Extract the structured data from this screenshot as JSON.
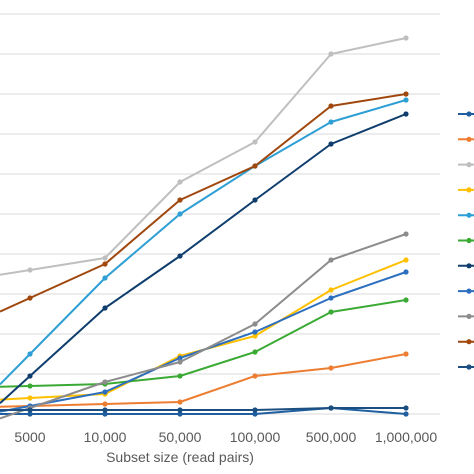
{
  "chart_data": {
    "type": "line",
    "title": "",
    "xlabel": "Subset size (read pairs)",
    "ylabel": "",
    "categories": [
      "5000",
      "10,000",
      "50,000",
      "100,000",
      "500,000",
      "1,000,000"
    ],
    "ylim": [
      0,
      100
    ],
    "grid": true,
    "legend": "right",
    "series": [
      {
        "color": "#1f5f9f",
        "values": [
          0,
          0,
          0,
          0,
          1.5,
          0
        ]
      },
      {
        "color": "#ed7d31",
        "values": [
          2,
          2.5,
          3,
          9.5,
          11.5,
          15
        ]
      },
      {
        "color": "#bfbfbf",
        "values": [
          36,
          39,
          58,
          68,
          90,
          94
        ]
      },
      {
        "color": "#ffc000",
        "values": [
          4,
          5,
          14.5,
          19.5,
          31,
          38.5
        ]
      },
      {
        "color": "#2e9fd5",
        "values": [
          15,
          34,
          50,
          62,
          73,
          78.5
        ]
      },
      {
        "color": "#3aaa35",
        "values": [
          7,
          7.5,
          9.5,
          15.5,
          25.5,
          28.5
        ]
      },
      {
        "color": "#0f3e6e",
        "values": [
          9.5,
          26.5,
          39.5,
          53.5,
          67.5,
          75
        ]
      },
      {
        "color": "#2d6fbf",
        "values": [
          2,
          5.5,
          14,
          20.5,
          29,
          35.5
        ]
      },
      {
        "color": "#8c8c8c",
        "values": [
          1.5,
          8,
          13,
          22.5,
          38.5,
          45
        ]
      },
      {
        "color": "#a0470d",
        "values": [
          29,
          37.5,
          53.5,
          62,
          77,
          80
        ]
      },
      {
        "color": "#1b4f80",
        "values": [
          1,
          1,
          1,
          1,
          1.5,
          1.5
        ]
      }
    ]
  }
}
